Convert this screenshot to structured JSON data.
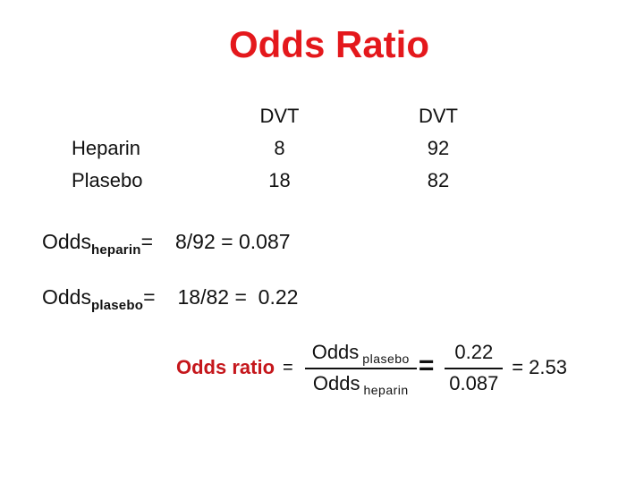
{
  "title": "Odds Ratio",
  "colors": {
    "title_red": "#e4181c",
    "label_red": "#c5171c",
    "text": "#111111",
    "background": "#ffffff"
  },
  "table": {
    "col_headers": [
      "DVT",
      "DVT"
    ],
    "rows": [
      {
        "label": "Heparin",
        "values": [
          "8",
          "92"
        ]
      },
      {
        "label": "Plasebo",
        "values": [
          "18",
          "82"
        ]
      }
    ]
  },
  "odds_lines": [
    {
      "base": "Odds",
      "sub": "heparin",
      "eq": "=",
      "expr": "8/92 = 0.087"
    },
    {
      "base": "Odds",
      "sub": "plasebo",
      "eq": "=",
      "expr": "18/82 =  0.22"
    }
  ],
  "formula": {
    "label": "Odds ratio",
    "equals": "=",
    "frac1": {
      "num_base": "Odds",
      "num_sub": "plasebo",
      "den_base": "Odds",
      "den_sub": "heparin"
    },
    "equals_big": "=",
    "frac2": {
      "num": "0.22",
      "den": "0.087"
    },
    "result": "= 2.53"
  }
}
